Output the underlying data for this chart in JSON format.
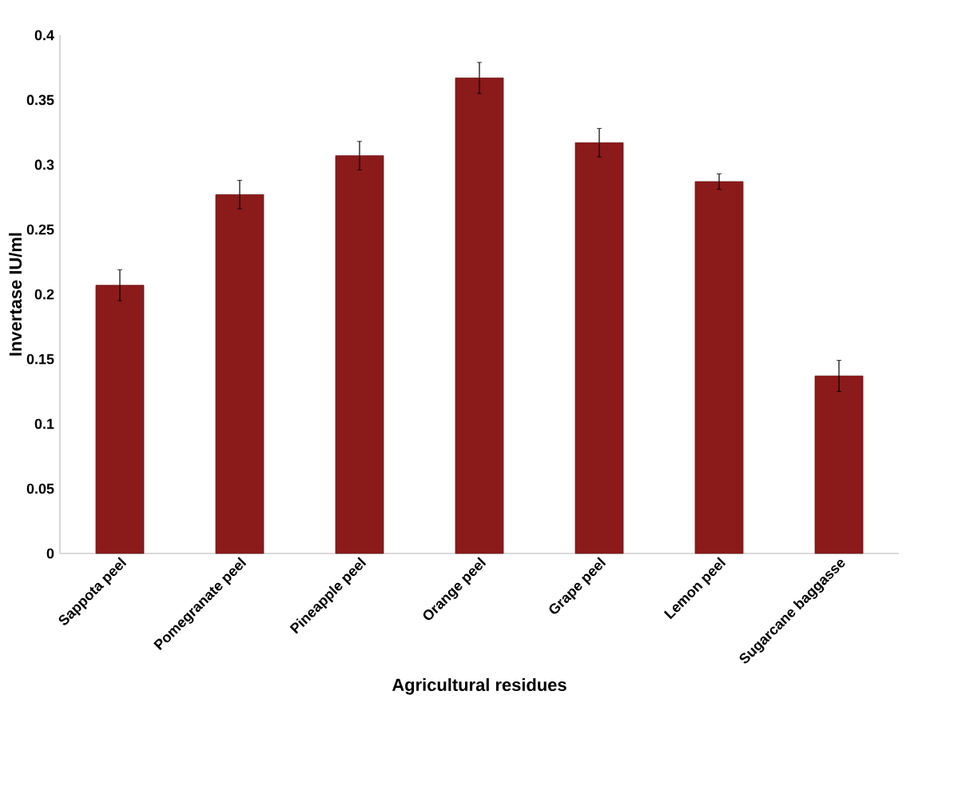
{
  "chart_data": {
    "type": "bar",
    "xlabel": "Agricultural residues",
    "ylabel": "Invertase IU/ml",
    "categories": [
      "Sappota peel",
      "Pomegranate peel",
      "Pineapple peel",
      "Orange peel",
      "Grape peel",
      "Lemon peel",
      "Sugarcane baggasse"
    ],
    "values": [
      0.207,
      0.277,
      0.307,
      0.367,
      0.317,
      0.287,
      0.137
    ],
    "errors": [
      0.012,
      0.011,
      0.011,
      0.012,
      0.011,
      0.006,
      0.012
    ],
    "color": "#8b1a1a",
    "ylim": [
      0,
      0.4
    ],
    "yticks": [
      0,
      0.05,
      0.1,
      0.15,
      0.2,
      0.25,
      0.3,
      0.35,
      0.4
    ]
  }
}
